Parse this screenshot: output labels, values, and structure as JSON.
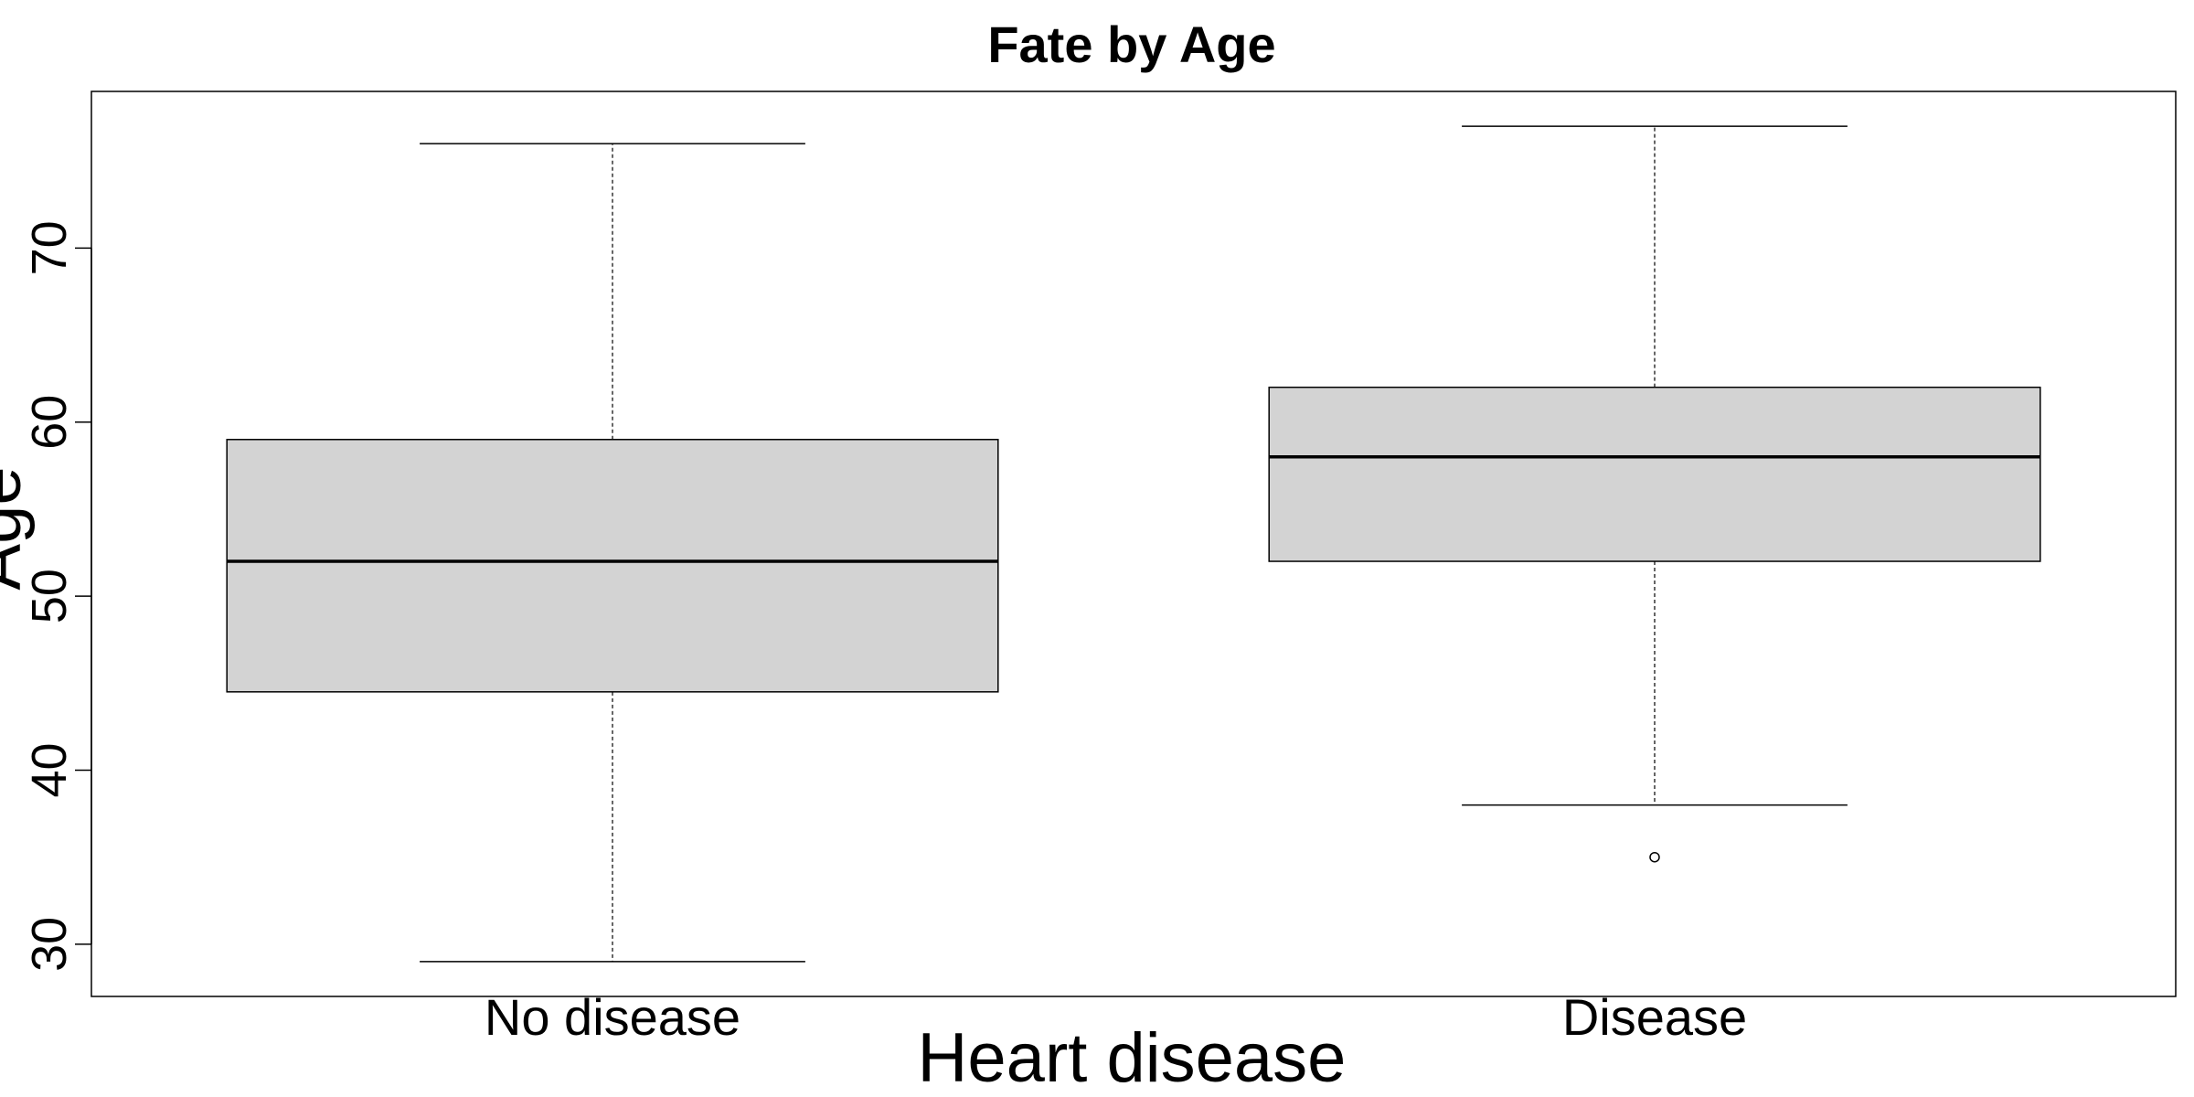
{
  "chart_data": {
    "type": "boxplot",
    "title": "Fate by Age",
    "xlabel": "Heart disease",
    "ylabel": "Age",
    "ylim": [
      27,
      79
    ],
    "yticks": [
      30,
      40,
      50,
      60,
      70
    ],
    "categories": [
      "No disease",
      "Disease"
    ],
    "boxes": [
      {
        "category": "No disease",
        "whisker_low": 29,
        "q1": 44.5,
        "median": 52,
        "q3": 59,
        "whisker_high": 76,
        "outliers": []
      },
      {
        "category": "Disease",
        "whisker_low": 38,
        "q1": 52,
        "median": 58,
        "q3": 62,
        "whisker_high": 77,
        "outliers": [
          35
        ]
      }
    ],
    "grid": false,
    "colors": {
      "box_fill": "#d3d3d3",
      "stroke": "#000000",
      "background": "#ffffff"
    }
  }
}
